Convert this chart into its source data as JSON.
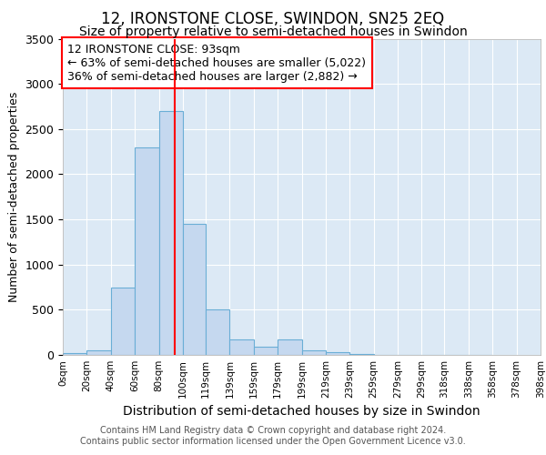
{
  "title": "12, IRONSTONE CLOSE, SWINDON, SN25 2EQ",
  "subtitle": "Size of property relative to semi-detached houses in Swindon",
  "xlabel": "Distribution of semi-detached houses by size in Swindon",
  "ylabel": "Number of semi-detached properties",
  "bar_heights": [
    20,
    50,
    750,
    2300,
    2700,
    1450,
    500,
    175,
    90,
    175,
    50,
    30,
    10,
    0,
    0,
    0,
    0,
    0
  ],
  "bin_edges": [
    0,
    20,
    40,
    60,
    80,
    100,
    119,
    139,
    159,
    179,
    199,
    219,
    239,
    259,
    279,
    299,
    318,
    338,
    358
  ],
  "x_tick_labels": [
    "0sqm",
    "20sqm",
    "40sqm",
    "60sqm",
    "80sqm",
    "100sqm",
    "119sqm",
    "139sqm",
    "159sqm",
    "179sqm",
    "199sqm",
    "219sqm",
    "239sqm",
    "259sqm",
    "279sqm",
    "299sqm",
    "318sqm",
    "338sqm",
    "358sqm",
    "378sqm",
    "398sqm"
  ],
  "x_tick_positions": [
    0,
    20,
    40,
    60,
    80,
    100,
    119,
    139,
    159,
    179,
    199,
    219,
    239,
    259,
    279,
    299,
    318,
    338,
    358,
    378,
    398
  ],
  "bar_color": "#c5d8ef",
  "bar_edge_color": "#6aaed6",
  "background_color": "#dce9f5",
  "grid_color": "#ffffff",
  "red_line_x": 93,
  "xlim": [
    0,
    398
  ],
  "ylim": [
    0,
    3500
  ],
  "yticks": [
    0,
    500,
    1000,
    1500,
    2000,
    2500,
    3000,
    3500
  ],
  "annotation_title": "12 IRONSTONE CLOSE: 93sqm",
  "annotation_line1": "← 63% of semi-detached houses are smaller (5,022)",
  "annotation_line2": "36% of semi-detached houses are larger (2,882) →",
  "footer1": "Contains HM Land Registry data © Crown copyright and database right 2024.",
  "footer2": "Contains public sector information licensed under the Open Government Licence v3.0.",
  "title_fontsize": 12,
  "subtitle_fontsize": 10,
  "ylabel_fontsize": 9,
  "xlabel_fontsize": 10,
  "footer_fontsize": 7,
  "annotation_fontsize": 9
}
